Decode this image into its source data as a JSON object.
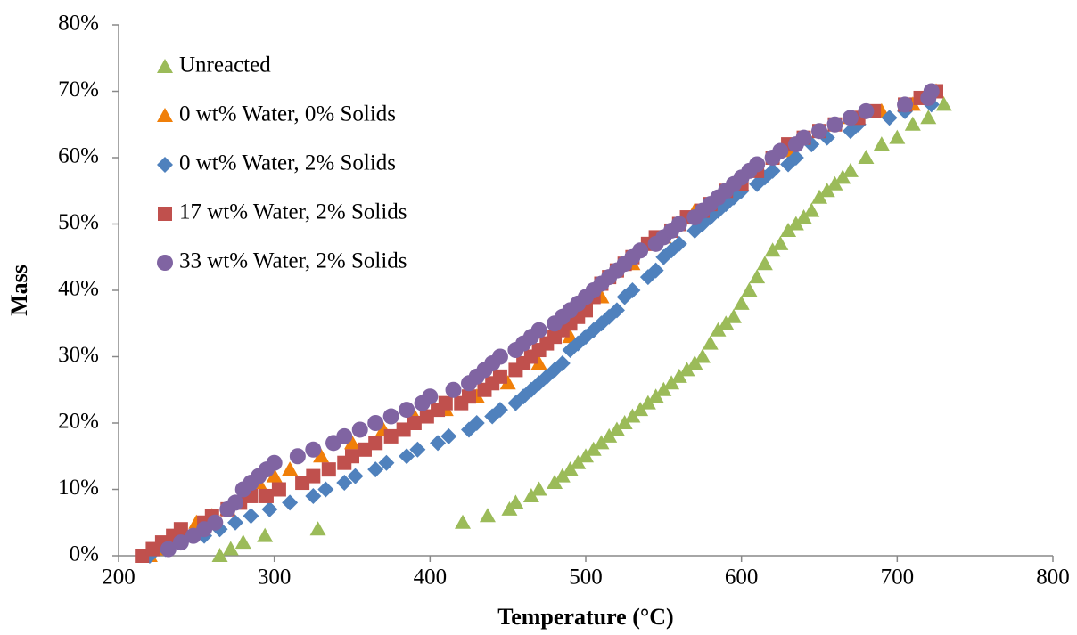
{
  "chart_data": {
    "type": "scatter",
    "x_label": "Temperature (°C)",
    "y_label": "Mass",
    "xlim": [
      200,
      800
    ],
    "xticks": [
      200,
      300,
      400,
      500,
      600,
      700,
      800
    ],
    "ylim": [
      0,
      80
    ],
    "yticks": [
      {
        "value": 0,
        "label": "0%"
      },
      {
        "value": 10,
        "label": "10%"
      },
      {
        "value": 20,
        "label": "20%"
      },
      {
        "value": 30,
        "label": "30%"
      },
      {
        "value": 40,
        "label": "40%"
      },
      {
        "value": 50,
        "label": "50%"
      },
      {
        "value": 60,
        "label": "60%"
      },
      {
        "value": 70,
        "label": "70%"
      },
      {
        "value": 80,
        "label": "80%"
      }
    ],
    "legend": "top-left",
    "series": [
      {
        "name": "Unreacted",
        "color": "#9bbb59",
        "marker": "triangle",
        "x": [
          265,
          272,
          280,
          294,
          328,
          421,
          437,
          451,
          455,
          465,
          470,
          480,
          485,
          490,
          495,
          500,
          505,
          510,
          515,
          520,
          525,
          530,
          535,
          540,
          545,
          550,
          555,
          560,
          565,
          570,
          575,
          580,
          585,
          590,
          595,
          600,
          605,
          610,
          615,
          620,
          625,
          630,
          635,
          640,
          645,
          650,
          655,
          660,
          665,
          670,
          680,
          690,
          700,
          710,
          720,
          730
        ],
        "values": [
          0,
          1,
          2,
          3,
          4,
          5,
          6,
          7,
          8,
          9,
          10,
          11,
          12,
          13,
          14,
          15,
          16,
          17,
          18,
          19,
          20,
          21,
          22,
          23,
          24,
          25,
          26,
          27,
          28,
          29,
          30,
          32,
          34,
          35,
          36,
          38,
          40,
          42,
          44,
          46,
          47,
          49,
          50,
          51,
          52,
          54,
          55,
          56,
          57,
          58,
          60,
          62,
          63,
          65,
          66,
          68
        ]
      },
      {
        "name": "0 wt% Water, 0% Solids",
        "color": "#f07f09",
        "marker": "triangle",
        "x": [
          220,
          230,
          240,
          250,
          260,
          270,
          280,
          290,
          300,
          310,
          330,
          350,
          370,
          390,
          410,
          430,
          450,
          470,
          490,
          510,
          530,
          550,
          570,
          590,
          610,
          630,
          650,
          670,
          690,
          710,
          725
        ],
        "values": [
          0,
          1,
          3,
          5,
          6,
          7,
          9,
          11,
          12,
          13,
          15,
          17,
          19,
          21,
          22,
          24,
          26,
          29,
          33,
          39,
          44,
          48,
          52,
          55,
          58,
          61,
          64,
          66,
          67,
          68,
          70
        ]
      },
      {
        "name": "0 wt% Water, 2% Solids",
        "color": "#4f81bd",
        "marker": "diamond",
        "x": [
          220,
          230,
          240,
          255,
          265,
          275,
          285,
          297,
          310,
          325,
          333,
          345,
          352,
          365,
          372,
          385,
          392,
          405,
          412,
          425,
          430,
          440,
          445,
          455,
          460,
          465,
          470,
          475,
          480,
          485,
          490,
          495,
          500,
          505,
          510,
          515,
          520,
          525,
          530,
          540,
          545,
          550,
          555,
          560,
          570,
          575,
          580,
          585,
          590,
          595,
          600,
          610,
          615,
          620,
          630,
          635,
          645,
          655,
          670,
          675,
          695,
          705,
          722
        ],
        "values": [
          0,
          1,
          2,
          3,
          4,
          5,
          6,
          7,
          8,
          9,
          10,
          11,
          12,
          13,
          14,
          15,
          16,
          17,
          18,
          19,
          20,
          21,
          22,
          23,
          24,
          25,
          26,
          27,
          28,
          29,
          31,
          32,
          33,
          34,
          35,
          36,
          37,
          39,
          40,
          42,
          43,
          45,
          46,
          47,
          49,
          50,
          51,
          52,
          53,
          54,
          55,
          56,
          57,
          58,
          59,
          60,
          62,
          63,
          64,
          65,
          66,
          67,
          68
        ]
      },
      {
        "name": "17 wt% Water, 2% Solids",
        "color": "#c0504d",
        "marker": "square",
        "x": [
          215,
          222,
          228,
          235,
          240,
          255,
          260,
          270,
          278,
          285,
          295,
          303,
          318,
          325,
          335,
          345,
          350,
          358,
          365,
          375,
          383,
          390,
          398,
          405,
          410,
          420,
          425,
          435,
          440,
          445,
          455,
          460,
          465,
          470,
          475,
          480,
          485,
          490,
          495,
          500,
          505,
          510,
          515,
          520,
          525,
          530,
          540,
          545,
          555,
          560,
          565,
          575,
          580,
          590,
          600,
          610,
          620,
          630,
          640,
          650,
          660,
          675,
          685,
          705,
          715,
          725
        ],
        "values": [
          0,
          1,
          2,
          3,
          4,
          5,
          6,
          7,
          8,
          9,
          9,
          10,
          11,
          12,
          13,
          14,
          15,
          16,
          17,
          18,
          19,
          20,
          21,
          22,
          23,
          23,
          24,
          25,
          26,
          27,
          28,
          29,
          30,
          31,
          32,
          33,
          34,
          35,
          36,
          37,
          39,
          41,
          42,
          43,
          44,
          45,
          47,
          48,
          49,
          50,
          51,
          52,
          53,
          55,
          56,
          58,
          60,
          62,
          63,
          64,
          65,
          66,
          67,
          68,
          69,
          70
        ]
      },
      {
        "name": "33 wt% Water, 2% Solids",
        "color": "#8064a2",
        "marker": "circle",
        "x": [
          232,
          240,
          248,
          255,
          262,
          270,
          275,
          280,
          285,
          290,
          295,
          300,
          315,
          325,
          338,
          345,
          355,
          365,
          375,
          385,
          395,
          400,
          415,
          425,
          430,
          435,
          440,
          445,
          455,
          460,
          465,
          470,
          480,
          485,
          490,
          495,
          500,
          505,
          510,
          515,
          520,
          525,
          530,
          535,
          545,
          550,
          555,
          560,
          570,
          575,
          580,
          585,
          590,
          595,
          600,
          605,
          610,
          620,
          625,
          635,
          640,
          650,
          660,
          670,
          680,
          705,
          720,
          722
        ],
        "values": [
          1,
          2,
          3,
          4,
          5,
          7,
          8,
          10,
          11,
          12,
          13,
          14,
          15,
          16,
          17,
          18,
          19,
          20,
          21,
          22,
          23,
          24,
          25,
          26,
          27,
          28,
          29,
          30,
          31,
          32,
          33,
          34,
          35,
          36,
          37,
          38,
          39,
          40,
          41,
          42,
          43,
          44,
          45,
          46,
          47,
          48,
          49,
          50,
          51,
          52,
          53,
          54,
          55,
          56,
          57,
          58,
          59,
          60,
          61,
          62,
          63,
          64,
          65,
          66,
          67,
          68,
          69,
          70
        ]
      }
    ]
  }
}
